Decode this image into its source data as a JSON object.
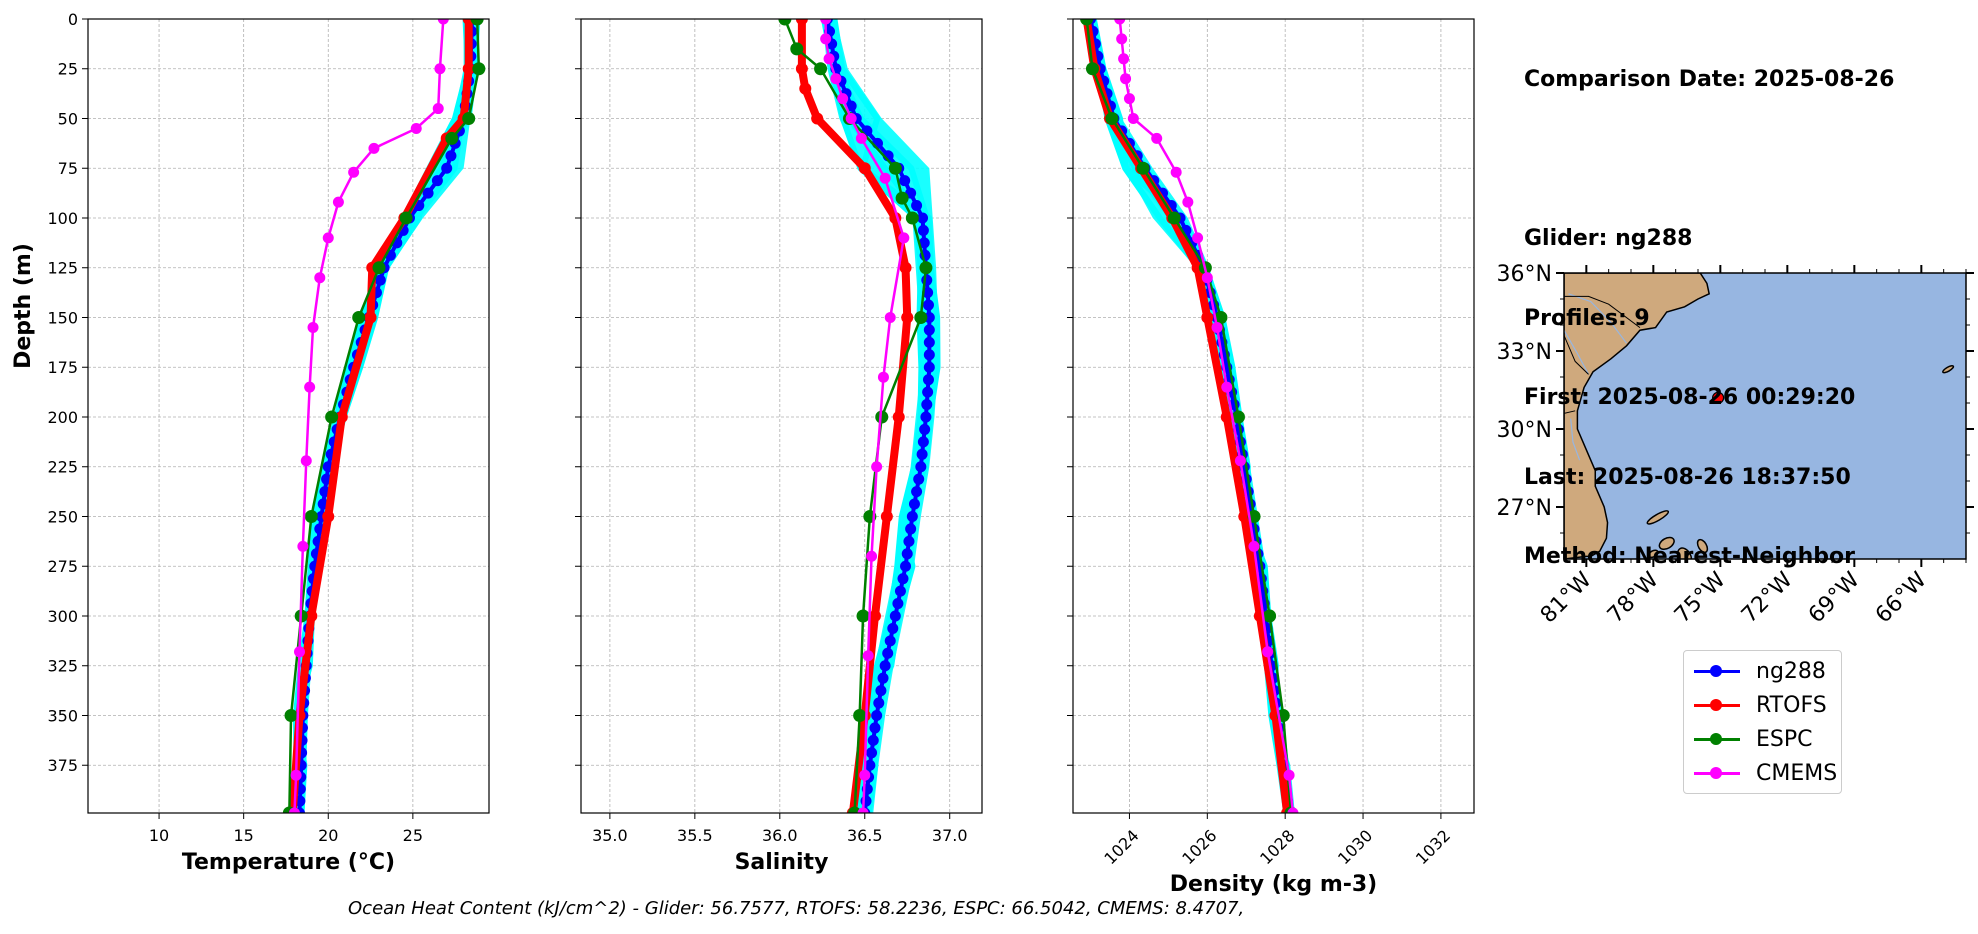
{
  "chart_data": [
    {
      "type": "line",
      "xlabel": "Temperature (°C)",
      "ylabel": "Depth (m)",
      "xlim": [
        5.8,
        29.5
      ],
      "ylim": [
        399,
        0
      ],
      "xticks": [
        10,
        15,
        20,
        25
      ],
      "yticks": [
        0,
        25,
        50,
        75,
        100,
        125,
        150,
        175,
        200,
        225,
        250,
        275,
        300,
        325,
        350,
        375
      ],
      "grid": true,
      "series": [
        {
          "name": "ng288",
          "depth": [
            0,
            25,
            50,
            75,
            100,
            125,
            150,
            175,
            200,
            225,
            250,
            275,
            300,
            325,
            350,
            375,
            399
          ],
          "values": [
            28.5,
            28.4,
            28.0,
            27.0,
            24.8,
            23.3,
            22.4,
            21.5,
            20.7,
            20.0,
            19.6,
            19.2,
            18.9,
            18.7,
            18.5,
            18.4,
            18.3
          ]
        },
        {
          "name": "RTOFS",
          "depth": [
            0,
            25,
            50,
            60,
            100,
            125,
            150,
            200,
            250,
            300,
            350,
            399
          ],
          "values": [
            28.3,
            28.3,
            28.0,
            27.0,
            24.5,
            22.6,
            22.5,
            20.8,
            20.0,
            19.0,
            18.3,
            17.9
          ]
        },
        {
          "name": "ESPC",
          "depth": [
            0,
            25,
            50,
            60,
            100,
            125,
            150,
            200,
            250,
            300,
            350,
            399
          ],
          "values": [
            28.8,
            28.9,
            28.3,
            27.3,
            24.6,
            23.0,
            21.8,
            20.2,
            19.0,
            18.4,
            17.8,
            17.7
          ]
        },
        {
          "name": "CMEMS",
          "depth": [
            0,
            25,
            45,
            55,
            65,
            77,
            92,
            110,
            130,
            155,
            185,
            222,
            265,
            318,
            380,
            399
          ],
          "values": [
            26.8,
            26.6,
            26.5,
            25.2,
            22.7,
            21.5,
            20.6,
            20.0,
            19.5,
            19.1,
            18.9,
            18.7,
            18.5,
            18.3,
            18.1,
            18.0
          ]
        }
      ],
      "spread": {
        "name": "ng288 profiles",
        "color": "#00ffff",
        "lo": [
          28.0,
          28.0,
          27.4,
          26.0,
          24.2,
          22.9,
          22.0,
          21.1,
          20.3,
          19.6,
          19.2,
          18.9,
          18.6,
          18.3,
          18.1,
          18.0,
          17.9
        ],
        "hi": [
          28.9,
          28.9,
          28.4,
          28.0,
          25.6,
          23.6,
          22.8,
          21.9,
          21.1,
          20.3,
          19.9,
          19.5,
          19.2,
          19.0,
          18.8,
          18.7,
          18.6
        ]
      }
    },
    {
      "type": "line",
      "xlabel": "Salinity",
      "ylabel": "",
      "xlim": [
        34.83,
        37.19
      ],
      "ylim": [
        399,
        0
      ],
      "xticks": [
        35.0,
        35.5,
        36.0,
        36.5,
        37.0
      ],
      "yticks": [
        0,
        25,
        50,
        75,
        100,
        125,
        150,
        175,
        200,
        225,
        250,
        275,
        300,
        325,
        350,
        375
      ],
      "grid": true,
      "series": [
        {
          "name": "ng288",
          "depth": [
            0,
            25,
            50,
            75,
            100,
            125,
            150,
            175,
            200,
            225,
            250,
            275,
            300,
            325,
            350,
            375,
            399
          ],
          "values": [
            36.28,
            36.33,
            36.45,
            36.7,
            36.84,
            36.86,
            36.88,
            36.88,
            36.86,
            36.83,
            36.78,
            36.74,
            36.68,
            36.62,
            36.57,
            36.53,
            36.5
          ]
        },
        {
          "name": "RTOFS",
          "depth": [
            0,
            25,
            35,
            50,
            75,
            100,
            125,
            150,
            200,
            250,
            300,
            350,
            399
          ],
          "values": [
            36.13,
            36.13,
            36.15,
            36.22,
            36.5,
            36.68,
            36.74,
            36.75,
            36.7,
            36.63,
            36.56,
            36.5,
            36.43
          ]
        },
        {
          "name": "ESPC",
          "depth": [
            0,
            15,
            25,
            50,
            75,
            90,
            100,
            125,
            150,
            200,
            250,
            300,
            350,
            399
          ],
          "values": [
            36.03,
            36.1,
            36.24,
            36.41,
            36.68,
            36.72,
            36.78,
            36.86,
            36.83,
            36.6,
            36.53,
            36.49,
            36.47,
            36.44
          ]
        },
        {
          "name": "CMEMS",
          "depth": [
            0,
            10,
            20,
            30,
            40,
            50,
            60,
            80,
            110,
            150,
            180,
            225,
            270,
            320,
            380,
            399
          ],
          "values": [
            36.27,
            36.27,
            36.29,
            36.33,
            36.37,
            36.42,
            36.48,
            36.62,
            36.73,
            36.65,
            36.61,
            36.57,
            36.54,
            36.52,
            36.5,
            36.49
          ]
        }
      ],
      "spread": {
        "name": "ng288 profiles",
        "color": "#00ffff",
        "lo": [
          36.25,
          36.28,
          36.35,
          36.48,
          36.78,
          36.8,
          36.82,
          36.83,
          36.8,
          36.77,
          36.72,
          36.68,
          36.62,
          36.56,
          36.51,
          36.47,
          36.45
        ],
        "hi": [
          36.33,
          36.4,
          36.6,
          36.88,
          36.9,
          36.92,
          36.93,
          36.93,
          36.91,
          36.88,
          36.83,
          36.79,
          36.73,
          36.67,
          36.62,
          36.58,
          36.55
        ]
      }
    },
    {
      "type": "line",
      "xlabel": "Density (kg m-3)",
      "ylabel": "",
      "xlim": [
        1022.55,
        1032.85
      ],
      "ylim": [
        399,
        0
      ],
      "xticks": [
        1024,
        1026,
        1028,
        1030,
        1032
      ],
      "yticks": [
        0,
        25,
        50,
        75,
        100,
        125,
        150,
        175,
        200,
        225,
        250,
        275,
        300,
        325,
        350,
        375
      ],
      "grid": true,
      "series": [
        {
          "name": "ng288",
          "depth": [
            0,
            25,
            50,
            75,
            100,
            125,
            150,
            175,
            200,
            225,
            250,
            275,
            300,
            325,
            350,
            375,
            399
          ],
          "values": [
            1023.0,
            1023.25,
            1023.6,
            1024.4,
            1025.3,
            1025.9,
            1026.25,
            1026.5,
            1026.75,
            1026.95,
            1027.15,
            1027.35,
            1027.5,
            1027.65,
            1027.8,
            1027.95,
            1028.1
          ]
        },
        {
          "name": "RTOFS",
          "depth": [
            0,
            25,
            50,
            75,
            100,
            125,
            150,
            200,
            250,
            300,
            350,
            399
          ],
          "values": [
            1022.9,
            1023.1,
            1023.5,
            1024.3,
            1025.1,
            1025.75,
            1026.0,
            1026.5,
            1026.95,
            1027.35,
            1027.75,
            1028.05
          ]
        },
        {
          "name": "ESPC",
          "depth": [
            0,
            25,
            50,
            75,
            100,
            125,
            150,
            200,
            250,
            300,
            350,
            399
          ],
          "values": [
            1022.9,
            1023.05,
            1023.55,
            1024.35,
            1025.15,
            1025.95,
            1026.35,
            1026.8,
            1027.2,
            1027.6,
            1027.95,
            1028.15
          ]
        },
        {
          "name": "CMEMS",
          "depth": [
            0,
            10,
            20,
            30,
            40,
            50,
            60,
            77,
            92,
            110,
            130,
            155,
            185,
            222,
            265,
            318,
            380,
            399
          ],
          "values": [
            1023.75,
            1023.8,
            1023.85,
            1023.9,
            1024.0,
            1024.1,
            1024.7,
            1025.2,
            1025.5,
            1025.75,
            1026.0,
            1026.25,
            1026.5,
            1026.85,
            1027.2,
            1027.55,
            1028.1,
            1028.2
          ]
        }
      ],
      "spread": {
        "name": "ng288 profiles",
        "color": "#00ffff",
        "lo": [
          1022.95,
          1023.15,
          1023.4,
          1023.9,
          1024.6,
          1025.7,
          1026.1,
          1026.35,
          1026.6,
          1026.8,
          1027.0,
          1027.2,
          1027.35,
          1027.5,
          1027.65,
          1027.8,
          1027.95
        ],
        "hi": [
          1023.1,
          1023.4,
          1023.8,
          1024.6,
          1025.5,
          1026.05,
          1026.4,
          1026.65,
          1026.9,
          1027.1,
          1027.3,
          1027.5,
          1027.65,
          1027.8,
          1027.95,
          1028.1,
          1028.25
        ]
      }
    }
  ],
  "info": {
    "line1": "Comparison Date: 2025-08-26",
    "line2": "Glider: ng288",
    "line3": "Profiles: 9",
    "line4": "First: 2025-08-26 00:29:20",
    "line5": "Last: 2025-08-26 18:37:50",
    "line6": "Method: Nearest-Neighbor"
  },
  "map": {
    "lon_range": [
      -82.0,
      -64.0
    ],
    "lat_range": [
      25.0,
      36.0
    ],
    "lat_ticks": [
      {
        "value": 36,
        "label": "36°N"
      },
      {
        "value": 33,
        "label": "33°N"
      },
      {
        "value": 30,
        "label": "30°N"
      },
      {
        "value": 27,
        "label": "27°N"
      }
    ],
    "lon_ticks": [
      {
        "value": -81,
        "label": "81°W"
      },
      {
        "value": -78,
        "label": "78°W"
      },
      {
        "value": -75,
        "label": "75°W"
      },
      {
        "value": -72,
        "label": "72°W"
      },
      {
        "value": -69,
        "label": "69°W"
      },
      {
        "value": -66,
        "label": "66°W"
      }
    ],
    "glider_position": {
      "lon": -75.1,
      "lat": 31.2
    },
    "ocean_color": "#97b6e1",
    "land_color": "#cfa97d"
  },
  "legend": [
    {
      "label": "ng288",
      "color": "#0000ff"
    },
    {
      "label": "RTOFS",
      "color": "#ff0000"
    },
    {
      "label": "ESPC",
      "color": "#008000"
    },
    {
      "label": "CMEMS",
      "color": "#ff00ff"
    }
  ],
  "footer": "Ocean Heat Content (kJ/cm^2) - Glider: 56.7577,  RTOFS: 58.2236,  ESPC: 66.5042,  CMEMS: 8.4707,"
}
